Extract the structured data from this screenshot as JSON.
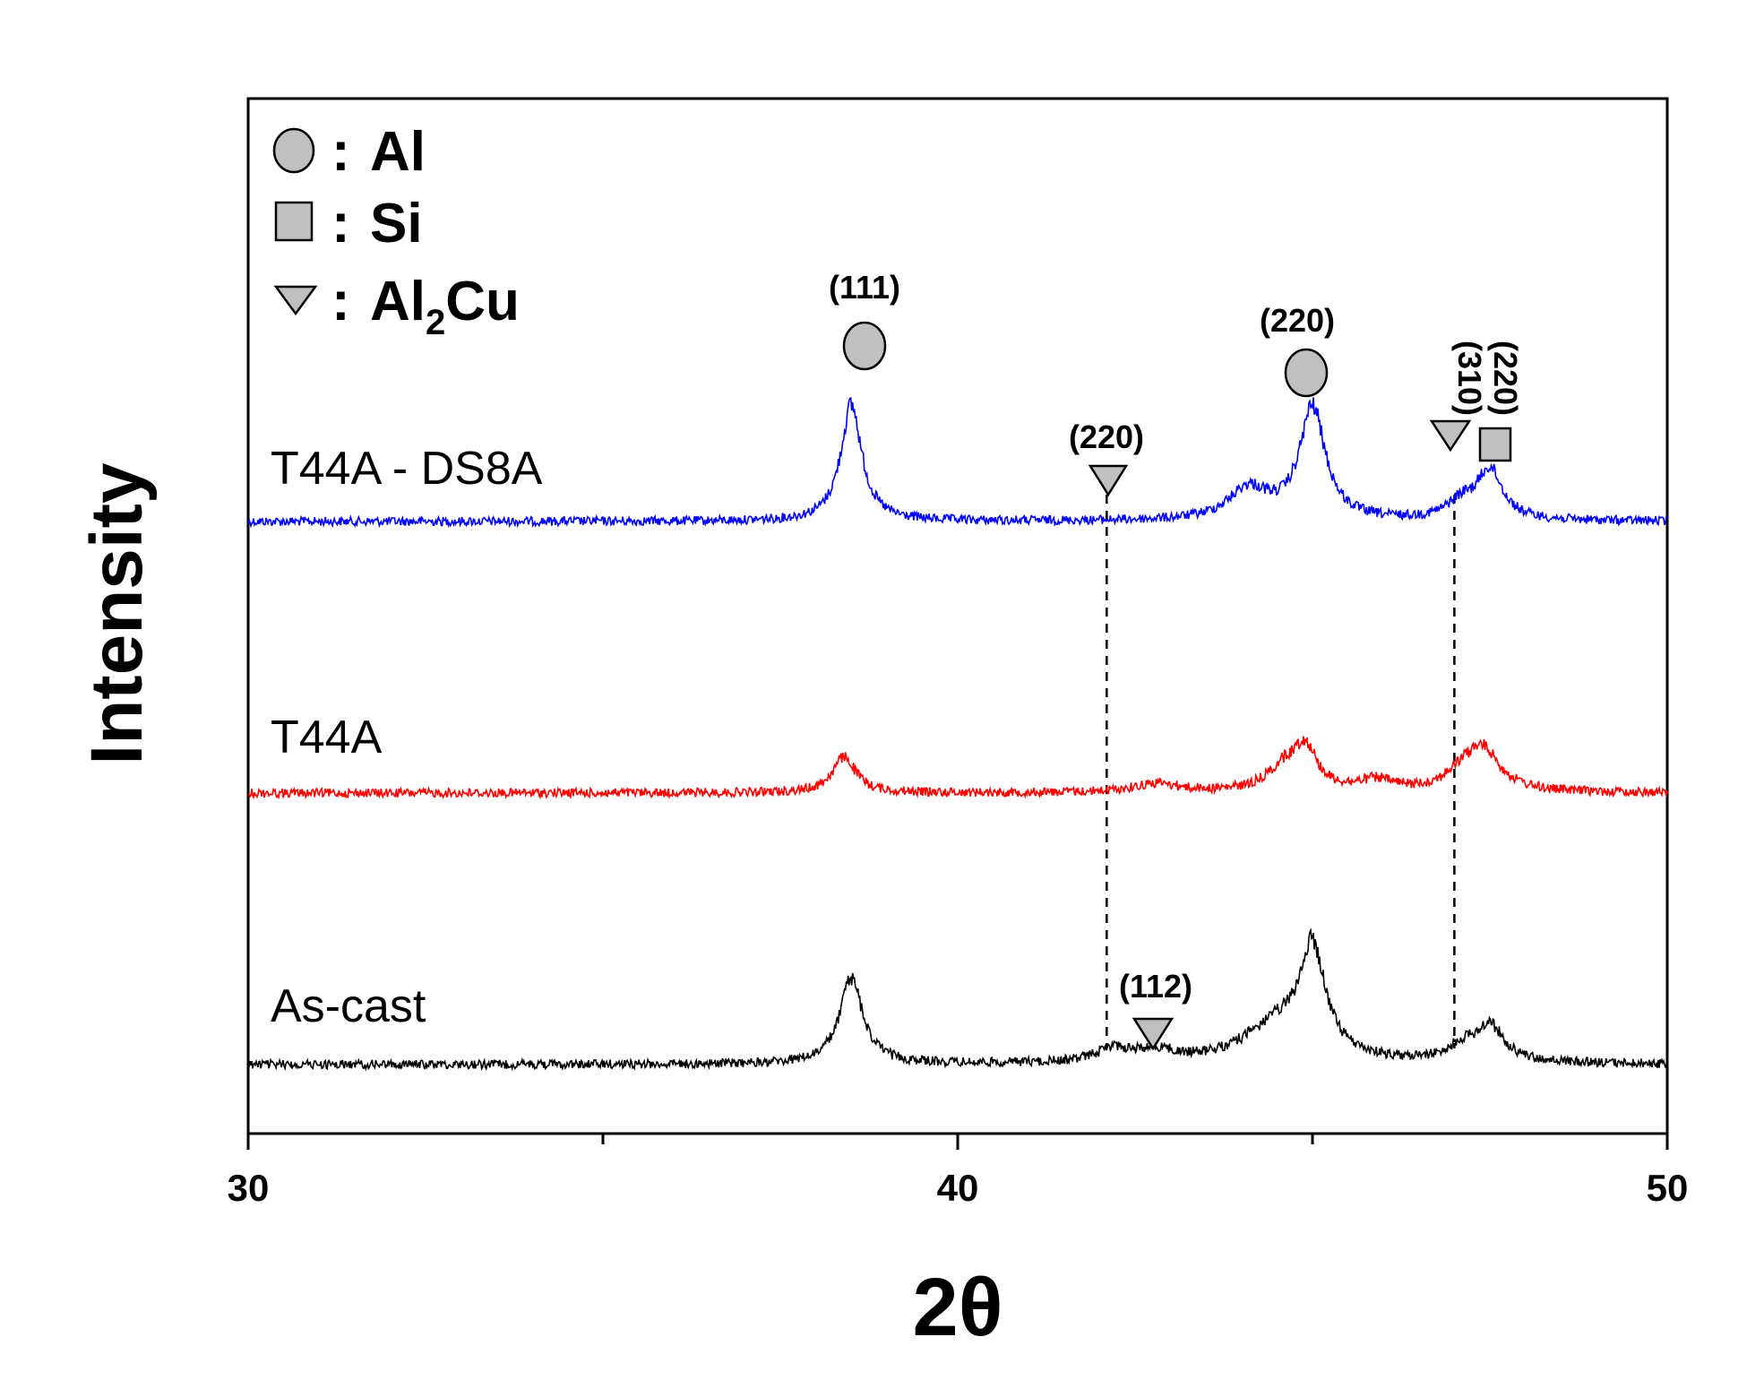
{
  "chart_data": {
    "type": "line",
    "xlabel": "2θ",
    "ylabel": "Intensity",
    "xlim": [
      30,
      50
    ],
    "xticks": [
      "30",
      "40",
      "50"
    ],
    "legend": {
      "placement": "top-left",
      "entries": [
        {
          "marker": "circle",
          "separator": ":",
          "text": "Al"
        },
        {
          "marker": "square",
          "separator": ":",
          "text": "Si"
        },
        {
          "marker": "triangle-down",
          "separator": ":",
          "text": "Al",
          "sub": "2",
          "suffix": "Cu"
        }
      ]
    },
    "series": [
      {
        "name": "T44A - DS8A",
        "color": "#0000ff",
        "peaks": [
          {
            "x": 38.5,
            "height": 130,
            "width": 0.18
          },
          {
            "x": 44.1,
            "height": 35,
            "width": 0.35
          },
          {
            "x": 45.0,
            "height": 125,
            "width": 0.22
          },
          {
            "x": 47.1,
            "height": 18,
            "width": 0.25
          },
          {
            "x": 47.5,
            "height": 55,
            "width": 0.22
          }
        ]
      },
      {
        "name": "T44A",
        "color": "#ff0000",
        "peaks": [
          {
            "x": 38.4,
            "height": 40,
            "width": 0.2
          },
          {
            "x": 42.8,
            "height": 10,
            "width": 0.4
          },
          {
            "x": 44.6,
            "height": 25,
            "width": 0.3
          },
          {
            "x": 44.9,
            "height": 45,
            "width": 0.2
          },
          {
            "x": 45.9,
            "height": 12,
            "width": 0.3
          },
          {
            "x": 47.1,
            "height": 15,
            "width": 0.3
          },
          {
            "x": 47.4,
            "height": 45,
            "width": 0.3
          }
        ]
      },
      {
        "name": "As-cast",
        "color": "#000000",
        "peaks": [
          {
            "x": 38.5,
            "height": 95,
            "width": 0.2
          },
          {
            "x": 42.2,
            "height": 15,
            "width": 0.3
          },
          {
            "x": 42.8,
            "height": 12,
            "width": 0.3
          },
          {
            "x": 44.5,
            "height": 40,
            "width": 0.6
          },
          {
            "x": 45.0,
            "height": 115,
            "width": 0.22
          },
          {
            "x": 47.1,
            "height": 15,
            "width": 0.25
          },
          {
            "x": 47.5,
            "height": 40,
            "width": 0.25
          }
        ]
      }
    ],
    "annotations": [
      {
        "label": "(111)",
        "marker": "circle",
        "x": 38.5
      },
      {
        "label": "(220)",
        "marker": "circle",
        "x": 45.0
      },
      {
        "label": "(220)",
        "marker": "triangle-down",
        "x": 42.1
      },
      {
        "label": "(310)",
        "marker": "triangle-down",
        "x": 46.9
      },
      {
        "label": "(220)",
        "marker": "square",
        "x": 47.4
      },
      {
        "label": "(112)",
        "marker": "triangle-down",
        "x": 42.8
      }
    ],
    "reference_lines": [
      {
        "style": "dashed",
        "x": 42.1
      },
      {
        "style": "dashed",
        "x": 47.0
      }
    ],
    "grid": false
  }
}
